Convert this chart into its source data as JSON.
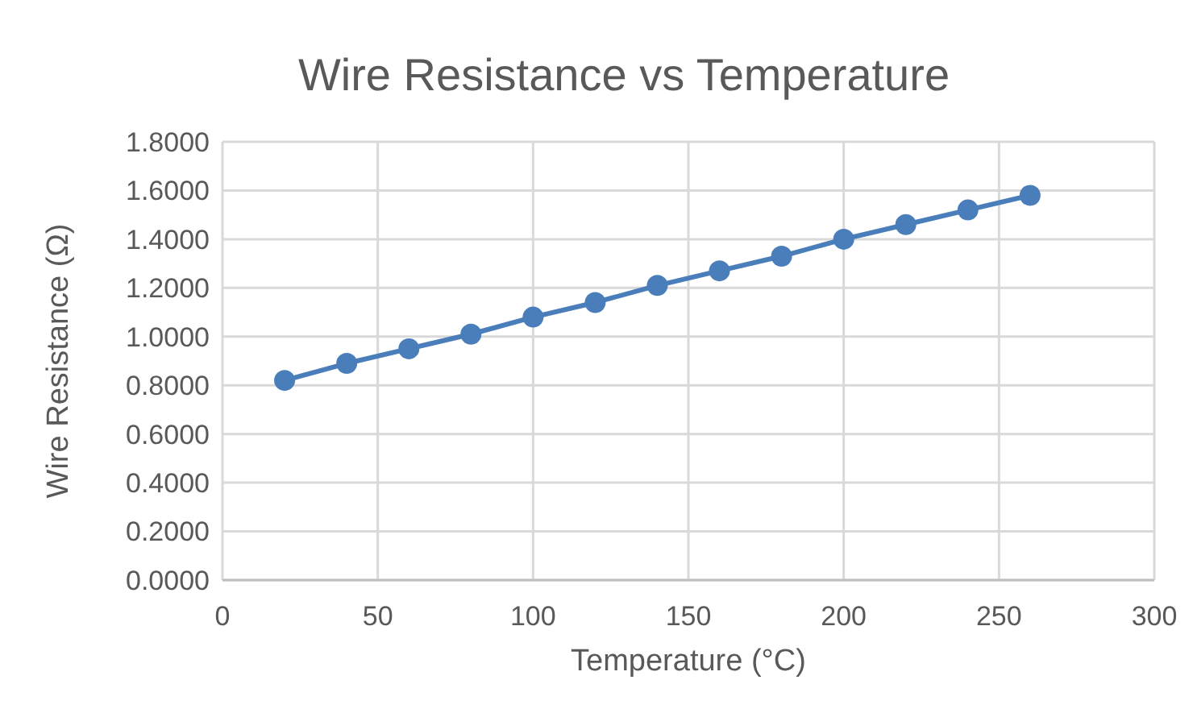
{
  "chart_data": {
    "type": "line",
    "title": "Wire Resistance vs Temperature",
    "xlabel": "Temperature (°C)",
    "ylabel": "Wire Resistance (Ω)",
    "x": [
      20,
      40,
      60,
      80,
      100,
      120,
      140,
      160,
      180,
      200,
      220,
      240,
      260
    ],
    "series": [
      {
        "color": "#4a7ebb",
        "values": [
          0.82,
          0.89,
          0.95,
          1.01,
          1.08,
          1.14,
          1.21,
          1.27,
          1.33,
          1.4,
          1.46,
          1.52,
          1.58
        ]
      }
    ],
    "xlim": [
      0,
      300
    ],
    "xticks": [
      0,
      50,
      100,
      150,
      200,
      250,
      300
    ],
    "ylim": [
      0,
      1.8
    ],
    "yticks": [
      {
        "value": 0,
        "label": "0.0000"
      },
      {
        "value": 0.2,
        "label": "0.2000"
      },
      {
        "value": 0.4,
        "label": "0.4000"
      },
      {
        "value": 0.6,
        "label": "0.6000"
      },
      {
        "value": 0.8,
        "label": "0.8000"
      },
      {
        "value": 1.0,
        "label": "1.0000"
      },
      {
        "value": 1.2,
        "label": "1.2000"
      },
      {
        "value": 1.4,
        "label": "1.4000"
      },
      {
        "value": 1.6,
        "label": "1.6000"
      },
      {
        "value": 1.8,
        "label": "1.8000"
      }
    ],
    "grid": true,
    "marker": "circle",
    "line_style": "solid"
  }
}
